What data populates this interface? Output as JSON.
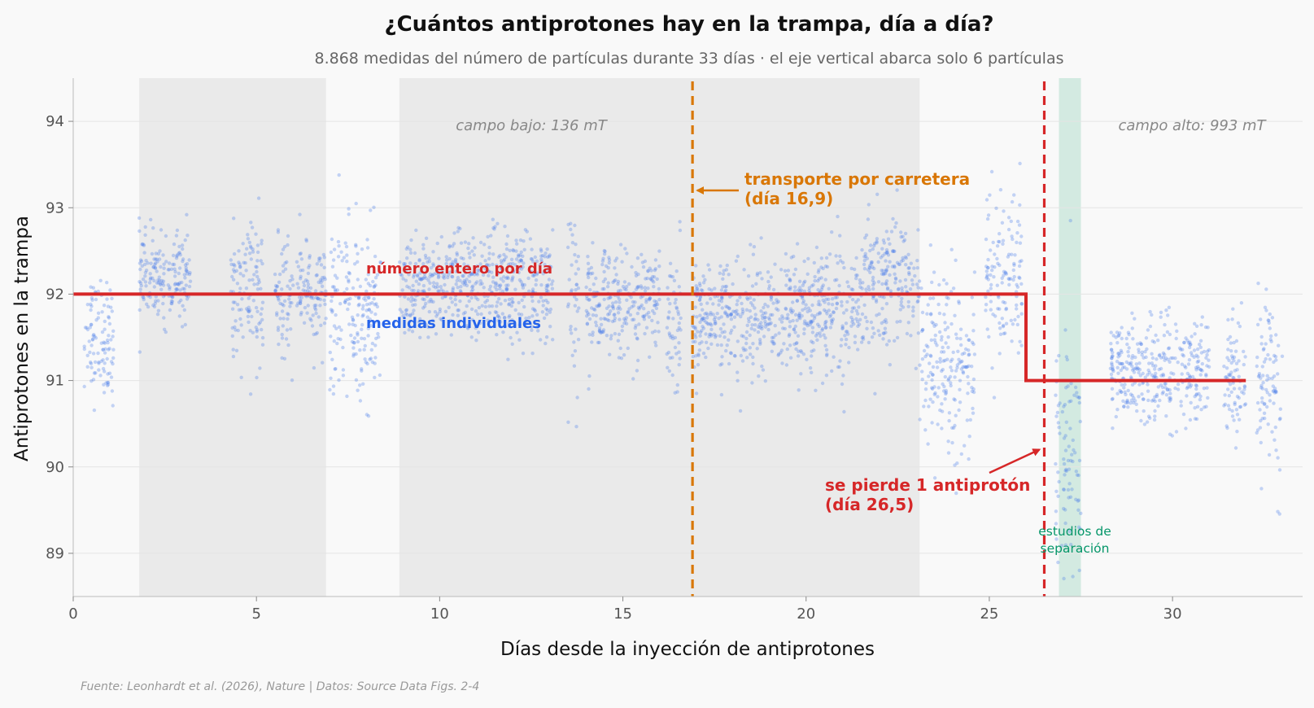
{
  "chart_data": {
    "type": "scatter",
    "title": "¿Cuántos antiprotones hay en la trampa, día a día?",
    "subtitle": "8.868 medidas del número de partículas durante 33 días · el eje vertical abarca solo 6 partículas",
    "xlabel": "Días desde la inyección de antiprotones",
    "ylabel": "Antiprotones en la trampa",
    "source": "Fuente: Leonhardt et al. (2026), Nature | Datos: Source Data Figs. 2-4",
    "xlim": [
      0,
      33.55
    ],
    "ylim": [
      88.5,
      94.5
    ],
    "x_ticks": [
      0,
      5,
      10,
      15,
      20,
      25,
      30
    ],
    "y_ticks": [
      89,
      90,
      91,
      92,
      93,
      94
    ],
    "grid": "horizontal",
    "colors": {
      "points": "#4f7ee8",
      "integer_line": "#d62728",
      "transport_line": "#d97706",
      "loss_line": "#d62728",
      "low_field_band": "#dedede",
      "separation_band": "#cde8dd",
      "separation_text": "#059669"
    },
    "series": [
      {
        "name": "medidas individuales",
        "kind": "scatter",
        "n_points": 8868,
        "approx_clusters": [
          {
            "x_range": [
              0.3,
              1.1
            ],
            "y_center": 91.5,
            "y_spread": 0.35
          },
          {
            "x_range": [
              1.8,
              3.2
            ],
            "y_center": 92.2,
            "y_spread": 0.25
          },
          {
            "x_range": [
              4.3,
              5.2
            ],
            "y_center": 92.0,
            "y_spread": 0.4
          },
          {
            "x_range": [
              5.5,
              6.0
            ],
            "y_center": 91.9,
            "y_spread": 0.35
          },
          {
            "x_range": [
              6.1,
              6.9
            ],
            "y_center": 92.0,
            "y_spread": 0.3
          },
          {
            "x_range": [
              7.0,
              8.4
            ],
            "y_center": 91.8,
            "y_spread": 0.5
          },
          {
            "x_range": [
              8.9,
              13.1
            ],
            "y_center": 92.1,
            "y_spread": 0.3
          },
          {
            "x_range": [
              13.5,
              13.8
            ],
            "y_center": 91.9,
            "y_spread": 0.6
          },
          {
            "x_range": [
              14.0,
              16.0
            ],
            "y_center": 91.9,
            "y_spread": 0.3
          },
          {
            "x_range": [
              16.2,
              16.6
            ],
            "y_center": 91.8,
            "y_spread": 0.4
          },
          {
            "x_range": [
              16.9,
              20.0
            ],
            "y_center": 91.7,
            "y_spread": 0.35
          },
          {
            "x_range": [
              20.0,
              21.5
            ],
            "y_center": 91.8,
            "y_spread": 0.35
          },
          {
            "x_range": [
              21.5,
              23.1
            ],
            "y_center": 92.2,
            "y_spread": 0.4
          },
          {
            "x_range": [
              23.1,
              24.6
            ],
            "y_center": 91.2,
            "y_spread": 0.5
          },
          {
            "x_range": [
              24.9,
              25.9
            ],
            "y_center": 92.2,
            "y_spread": 0.5
          },
          {
            "x_range": [
              26.8,
              27.5
            ],
            "y_center": 90.0,
            "y_spread": 0.8
          },
          {
            "x_range": [
              28.3,
              31.0
            ],
            "y_center": 91.1,
            "y_spread": 0.3
          },
          {
            "x_range": [
              31.4,
              32.0
            ],
            "y_center": 91.0,
            "y_spread": 0.4
          },
          {
            "x_range": [
              32.3,
              33.0
            ],
            "y_center": 91.0,
            "y_spread": 0.5
          }
        ]
      },
      {
        "name": "número entero por día",
        "kind": "step",
        "x": [
          0,
          26.0,
          26.0,
          32.0
        ],
        "y": [
          92,
          92,
          91,
          91
        ]
      }
    ],
    "shaded_regions": [
      {
        "x_range": [
          1.8,
          6.9
        ],
        "kind": "low_field"
      },
      {
        "x_range": [
          8.9,
          23.1
        ],
        "kind": "low_field",
        "label": "campo bajo: 136 mT"
      },
      {
        "x_range": [
          26.9,
          27.5
        ],
        "kind": "separation",
        "label": "estudios de separación"
      }
    ],
    "annotations": [
      {
        "kind": "vline",
        "x": 16.9,
        "text": "transporte por carretera",
        "text2": "(día 16,9)",
        "arrow_at": {
          "x": 16.9,
          "y": 93.2
        }
      },
      {
        "kind": "vline",
        "x": 26.5,
        "text": "se pierde 1 antiprotón",
        "text2": "(día 26,5)",
        "arrow_at": {
          "x": 26.5,
          "y": 90.2
        }
      },
      {
        "kind": "label",
        "text": "campo alto: 993 mT",
        "x": 30.5,
        "y": 93.94
      }
    ],
    "legend": {
      "placement": "inline",
      "entries": [
        "número entero por día",
        "medidas individuales"
      ]
    }
  }
}
